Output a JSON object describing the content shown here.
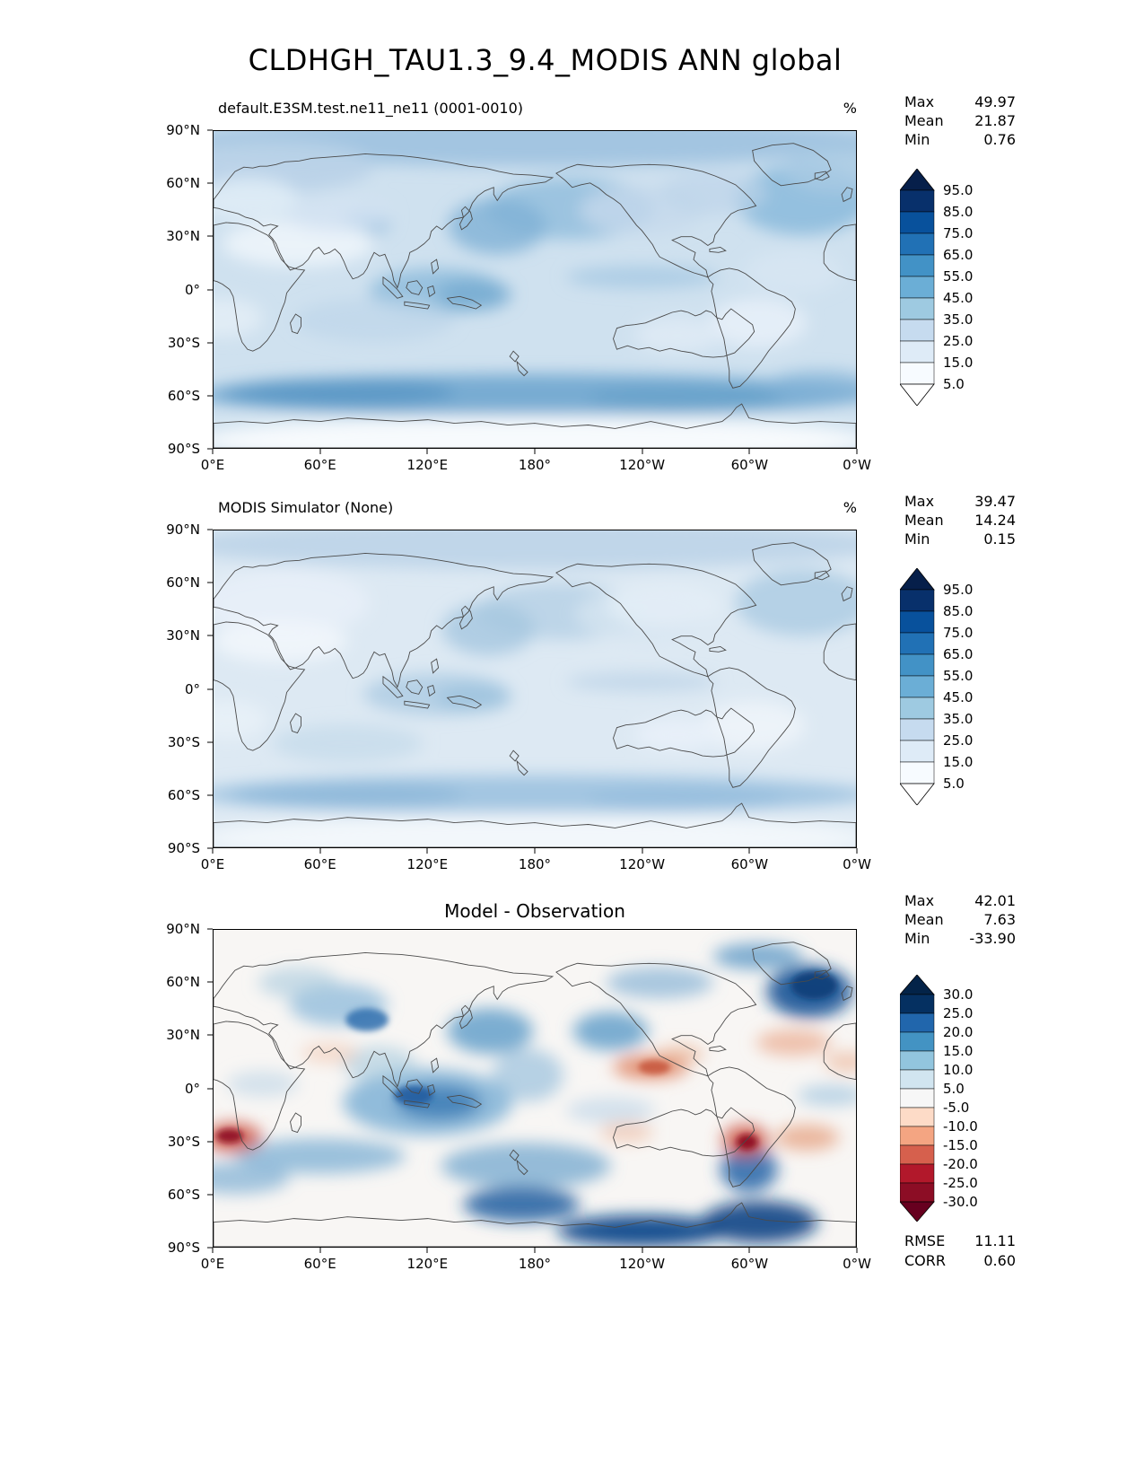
{
  "title": "CLDHGH_TAU1.3_9.4_MODIS ANN global",
  "axis": {
    "lat": [
      "90°N",
      "60°N",
      "30°N",
      "0°",
      "30°S",
      "60°S",
      "90°S"
    ],
    "lon": [
      "0°E",
      "60°E",
      "120°E",
      "180°",
      "120°W",
      "60°W",
      "0°W"
    ]
  },
  "colorbars": {
    "pct": {
      "arrow_h": 24,
      "seg_h": 24,
      "arrow_top": "#061f4a",
      "arrow_bottom": "#ffffff",
      "labels": [
        "95.0",
        "85.0",
        "75.0",
        "65.0",
        "55.0",
        "45.0",
        "35.0",
        "25.0",
        "15.0",
        "5.0"
      ],
      "segment_colors_top_to_bottom": [
        "#08306b",
        "#08519c",
        "#2171b5",
        "#4292c6",
        "#6baed6",
        "#9ecae1",
        "#c6dbef",
        "#deebf7",
        "#f7fbff"
      ]
    },
    "diff": {
      "arrow_h": 22,
      "seg_h": 21,
      "arrow_top": "#032348",
      "arrow_bottom": "#67001f",
      "labels": [
        "30.0",
        "25.0",
        "20.0",
        "15.0",
        "10.0",
        "5.0",
        "-5.0",
        "-10.0",
        "-15.0",
        "-20.0",
        "-25.0",
        "-30.0"
      ],
      "segment_colors_top_to_bottom": [
        "#053061",
        "#2166ac",
        "#4393c3",
        "#92c5de",
        "#d1e5f0",
        "#f7f7f7",
        "#fddbc7",
        "#f4a582",
        "#d6604d",
        "#b2182b",
        "#8c0d25"
      ]
    }
  },
  "panels": [
    {
      "subtitle": "default.E3SM.test.ne11_ne11 (0001-0010)",
      "unit": "%",
      "stats": [
        {
          "label": "Max",
          "value": "49.97"
        },
        {
          "label": "Mean",
          "value": "21.87"
        },
        {
          "label": "Min",
          "value": "0.76"
        }
      ],
      "map": {
        "background": "#cfe1ef",
        "blobs": [
          [
            360,
            12,
            400,
            28,
            "#a3c5e1",
            1
          ],
          [
            60,
            40,
            120,
            30,
            "#b9d2e8",
            0.9
          ],
          [
            660,
            78,
            75,
            40,
            "#8ebddd",
            0.9
          ],
          [
            700,
            45,
            60,
            25,
            "#a9cae4",
            0.8
          ],
          [
            400,
            88,
            95,
            35,
            "#93bedd",
            0.85
          ],
          [
            318,
            108,
            55,
            32,
            "#7fb2d6",
            0.8
          ],
          [
            172,
            104,
            26,
            14,
            "#8db9da",
            0.9
          ],
          [
            40,
            78,
            55,
            25,
            "#dfecf6",
            0.9
          ],
          [
            95,
            128,
            85,
            26,
            "#ecf3fa",
            0.95
          ],
          [
            140,
            95,
            60,
            20,
            "#d4e4f2",
            0.8
          ],
          [
            480,
            90,
            70,
            28,
            "#c6daec",
            0.8
          ],
          [
            560,
            70,
            60,
            25,
            "#bdd4e9",
            0.7
          ],
          [
            250,
            182,
            75,
            26,
            "#8ebcdc",
            0.85
          ],
          [
            292,
            186,
            42,
            18,
            "#76abd2",
            0.8
          ],
          [
            480,
            166,
            85,
            13,
            "#a6c9e4",
            0.8
          ],
          [
            180,
            215,
            90,
            25,
            "#bdd5e9",
            0.7
          ],
          [
            610,
            218,
            55,
            28,
            "#e7f0f8",
            0.9
          ],
          [
            10,
            212,
            45,
            22,
            "#e4eef7",
            0.85
          ],
          [
            520,
            232,
            48,
            20,
            "#dfebf6",
            0.85
          ],
          [
            650,
            160,
            55,
            25,
            "#d8e7f3",
            0.7
          ],
          [
            360,
            300,
            380,
            24,
            "#74a9d1",
            0.95
          ],
          [
            140,
            297,
            130,
            16,
            "#5996c4",
            0.85
          ],
          [
            530,
            303,
            110,
            15,
            "#68a1ca",
            0.75
          ],
          [
            680,
            290,
            60,
            18,
            "#7fb0d5",
            0.7
          ],
          [
            360,
            331,
            380,
            10,
            "#dce9f4",
            0.7
          ],
          [
            360,
            352,
            380,
            26,
            "#f7fafd",
            1
          ]
        ]
      }
    },
    {
      "subtitle": "MODIS Simulator (None)",
      "unit": "%",
      "stats": [
        {
          "label": "Max",
          "value": "39.47"
        },
        {
          "label": "Mean",
          "value": "14.24"
        },
        {
          "label": "Min",
          "value": "0.15"
        }
      ],
      "map": {
        "background": "#dde9f3",
        "blobs": [
          [
            360,
            16,
            400,
            28,
            "#c0d6e9",
            1
          ],
          [
            660,
            82,
            75,
            38,
            "#b0cee4",
            0.9
          ],
          [
            390,
            92,
            95,
            32,
            "#b7d1e6",
            0.85
          ],
          [
            308,
            112,
            52,
            30,
            "#a5c7e0",
            0.8
          ],
          [
            80,
            82,
            95,
            38,
            "#e8f0f8",
            0.9
          ],
          [
            75,
            126,
            75,
            24,
            "#f0f5fb",
            0.95
          ],
          [
            480,
            95,
            75,
            30,
            "#d6e5f1",
            0.8
          ],
          [
            250,
            186,
            82,
            24,
            "#afcde4",
            0.85
          ],
          [
            292,
            190,
            42,
            16,
            "#9cc1dd",
            0.75
          ],
          [
            480,
            172,
            85,
            11,
            "#bed5e9",
            0.8
          ],
          [
            605,
            222,
            58,
            28,
            "#eef4fa",
            0.9
          ],
          [
            15,
            215,
            45,
            22,
            "#e9f1f8",
            0.85
          ],
          [
            520,
            232,
            48,
            18,
            "#e9f1f9",
            0.9
          ],
          [
            505,
            85,
            65,
            25,
            "#e4eef7",
            0.85
          ],
          [
            150,
            242,
            85,
            22,
            "#c2d8ea",
            0.65
          ],
          [
            360,
            300,
            380,
            22,
            "#9cc2e0",
            0.9
          ],
          [
            150,
            300,
            130,
            14,
            "#8ab6d8",
            0.7
          ],
          [
            530,
            304,
            110,
            13,
            "#94bcdb",
            0.65
          ],
          [
            360,
            330,
            380,
            10,
            "#e2ecf5",
            0.7
          ],
          [
            360,
            350,
            380,
            26,
            "#f2f7fb",
            1
          ]
        ]
      }
    },
    {
      "subtitle": "Model - Observation",
      "stats": [
        {
          "label": "Max",
          "value": "42.01"
        },
        {
          "label": "Mean",
          "value": "7.63"
        },
        {
          "label": "Min",
          "value": "-33.90"
        }
      ],
      "extra_stats": [
        {
          "label": "RMSE",
          "value": "11.11"
        },
        {
          "label": "CORR",
          "value": "0.60"
        }
      ],
      "map": {
        "background": "#f8f6f4",
        "blobs": [
          [
            240,
            196,
            95,
            38,
            "#7fb2d6",
            0.85
          ],
          [
            252,
            196,
            48,
            20,
            "#3d7db6",
            0.85
          ],
          [
            224,
            188,
            22,
            11,
            "#1c5a9e",
            0.85,
            "s"
          ],
          [
            185,
            152,
            42,
            20,
            "#a5c9de",
            0.6
          ],
          [
            172,
            102,
            24,
            13,
            "#2f6fae",
            0.85,
            "s"
          ],
          [
            140,
            85,
            55,
            24,
            "#85b5d8",
            0.7
          ],
          [
            95,
            60,
            45,
            18,
            "#a9cade",
            0.6
          ],
          [
            310,
            115,
            48,
            26,
            "#5d9bc8",
            0.8
          ],
          [
            352,
            165,
            40,
            30,
            "#8ab8d9",
            0.6
          ],
          [
            445,
            115,
            42,
            22,
            "#5d9bc8",
            0.8
          ],
          [
            500,
            60,
            60,
            18,
            "#74a9d1",
            0.6
          ],
          [
            668,
            70,
            48,
            30,
            "#1a5396",
            0.9
          ],
          [
            673,
            63,
            26,
            16,
            "#0b3d78",
            0.9,
            "s"
          ],
          [
            610,
            30,
            50,
            15,
            "#4d8fc2",
            0.7
          ],
          [
            120,
            257,
            95,
            20,
            "#74a9d1",
            0.7
          ],
          [
            350,
            268,
            95,
            26,
            "#6ba3cc",
            0.7
          ],
          [
            345,
            312,
            65,
            20,
            "#1d5da0",
            0.85
          ],
          [
            25,
            282,
            60,
            18,
            "#74a9d1",
            0.65
          ],
          [
            480,
            342,
            95,
            18,
            "#114a8b",
            0.95
          ],
          [
            612,
            332,
            65,
            24,
            "#0d4485",
            0.9
          ],
          [
            600,
            272,
            32,
            26,
            "#2565a8",
            0.85
          ],
          [
            692,
            188,
            38,
            12,
            "#9cc3de",
            0.65
          ],
          [
            445,
            205,
            50,
            15,
            "#bad3e7",
            0.6
          ],
          [
            55,
            175,
            40,
            15,
            "#b8d2e6",
            0.55
          ],
          [
            22,
            236,
            32,
            17,
            "#cc5544",
            0.85
          ],
          [
            18,
            234,
            15,
            8,
            "#8f1021",
            0.9,
            "s"
          ],
          [
            596,
            239,
            26,
            18,
            "#cc5544",
            0.85
          ],
          [
            598,
            241,
            12,
            9,
            "#8f1021",
            0.95,
            "s"
          ],
          [
            490,
            156,
            42,
            14,
            "#df8666",
            0.85
          ],
          [
            494,
            156,
            18,
            8,
            "#c6533b",
            0.85,
            "s"
          ],
          [
            650,
            128,
            42,
            15,
            "#ecb49b",
            0.8
          ],
          [
            524,
            141,
            26,
            10,
            "#eab396",
            0.7
          ],
          [
            665,
            236,
            36,
            15,
            "#e7a789",
            0.8
          ],
          [
            463,
            230,
            30,
            12,
            "#f0c5ae",
            0.7
          ],
          [
            130,
            140,
            32,
            12,
            "#f2cdb8",
            0.65
          ],
          [
            710,
            150,
            25,
            12,
            "#edbaa1",
            0.7
          ]
        ]
      }
    }
  ],
  "chart_data": [
    {
      "type": "heatmap",
      "title": "default.E3SM.test.ne11_ne11 (0001-0010)",
      "units": "%",
      "projection": "global lat-lon, longitudes 0°E to 0°W (0-360)",
      "stats": {
        "max": 49.97,
        "mean": 21.87,
        "min": 0.76
      },
      "colorbar_levels": [
        5.0,
        15.0,
        25.0,
        35.0,
        45.0,
        55.0,
        65.0,
        75.0,
        85.0,
        95.0
      ],
      "colormap": "Blues (white to dark navy), triangular extensions both ends",
      "xticks": [
        "0°E",
        "60°E",
        "120°E",
        "180°",
        "120°W",
        "60°W",
        "0°W"
      ],
      "yticks": [
        "90°N",
        "60°N",
        "30°N",
        "0°",
        "30°S",
        "60°S",
        "90°S"
      ],
      "notes": "High cloud fraction field; darkest band along ~60°S storm track and tropical west Pacific; lightest over subtropical deserts and Antarctic interior"
    },
    {
      "type": "heatmap",
      "title": "MODIS Simulator (None)",
      "units": "%",
      "projection": "global lat-lon, longitudes 0°E to 0°W (0-360)",
      "stats": {
        "max": 39.47,
        "mean": 14.24,
        "min": 0.15
      },
      "colorbar_levels": [
        5.0,
        15.0,
        25.0,
        35.0,
        45.0,
        55.0,
        65.0,
        75.0,
        85.0,
        95.0
      ],
      "colormap": "Blues (white to dark navy), triangular extensions both ends",
      "xticks": [
        "0°E",
        "60°E",
        "120°E",
        "180°",
        "120°W",
        "60°W",
        "0°W"
      ],
      "yticks": [
        "90°N",
        "60°N",
        "30°N",
        "0°",
        "30°S",
        "60°S",
        "90°S"
      ],
      "notes": "Same field as observed/simulated reference; overall lighter (lower values) than model panel"
    },
    {
      "type": "heatmap",
      "title": "Model - Observation",
      "units": "%",
      "projection": "global lat-lon, longitudes 0°E to 0°W (0-360)",
      "stats": {
        "max": 42.01,
        "mean": 7.63,
        "min": -33.9,
        "rmse": 11.11,
        "corr": 0.6
      },
      "colorbar_levels": [
        -30.0,
        -25.0,
        -20.0,
        -15.0,
        -10.0,
        -5.0,
        5.0,
        10.0,
        15.0,
        20.0,
        25.0,
        30.0
      ],
      "colormap": "RdBu diverging (dark red negative to dark navy positive)",
      "xticks": [
        "0°E",
        "60°E",
        "120°E",
        "180°",
        "120°W",
        "60°W",
        "0°W"
      ],
      "yticks": [
        "90°N",
        "60°N",
        "30°N",
        "0°",
        "30°S",
        "60°S",
        "90°S"
      ],
      "notes": "Positive (blue) bias over tropical Indo-Pacific, N Atlantic, Southern Ocean; negative (red) bias off Namibia, off Peru/Chile, east Pacific ITCZ"
    }
  ]
}
